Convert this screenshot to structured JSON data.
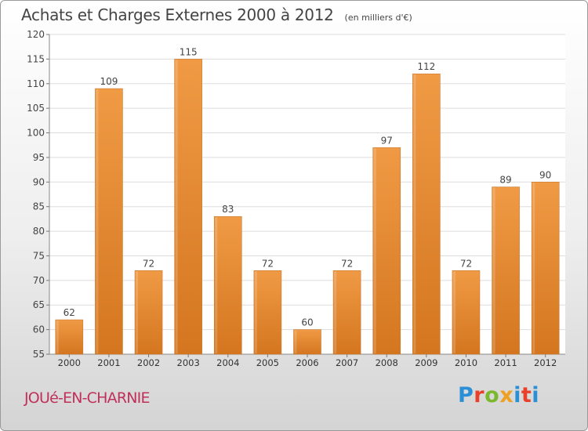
{
  "chart_data": {
    "type": "bar",
    "title": "Achats et Charges Externes 2000 à 2012",
    "subtitle": "(en milliers d'€)",
    "categories": [
      "2000",
      "2001",
      "2002",
      "2003",
      "2004",
      "2005",
      "2006",
      "2007",
      "2008",
      "2009",
      "2010",
      "2011",
      "2012"
    ],
    "values": [
      62,
      109,
      72,
      115,
      83,
      72,
      60,
      72,
      97,
      112,
      72,
      89,
      90
    ],
    "ylim": [
      55,
      120
    ],
    "yticks": [
      55,
      60,
      65,
      70,
      75,
      80,
      85,
      90,
      95,
      100,
      105,
      110,
      115,
      120
    ],
    "grid": true,
    "bar_color": "#f09a45",
    "bar_color_dark": "#d4761f"
  },
  "footer": {
    "town": "JOUé-EN-CHARNIE",
    "logo_letters": [
      "P",
      "r",
      "o",
      "x",
      "i",
      "t",
      "i"
    ]
  }
}
